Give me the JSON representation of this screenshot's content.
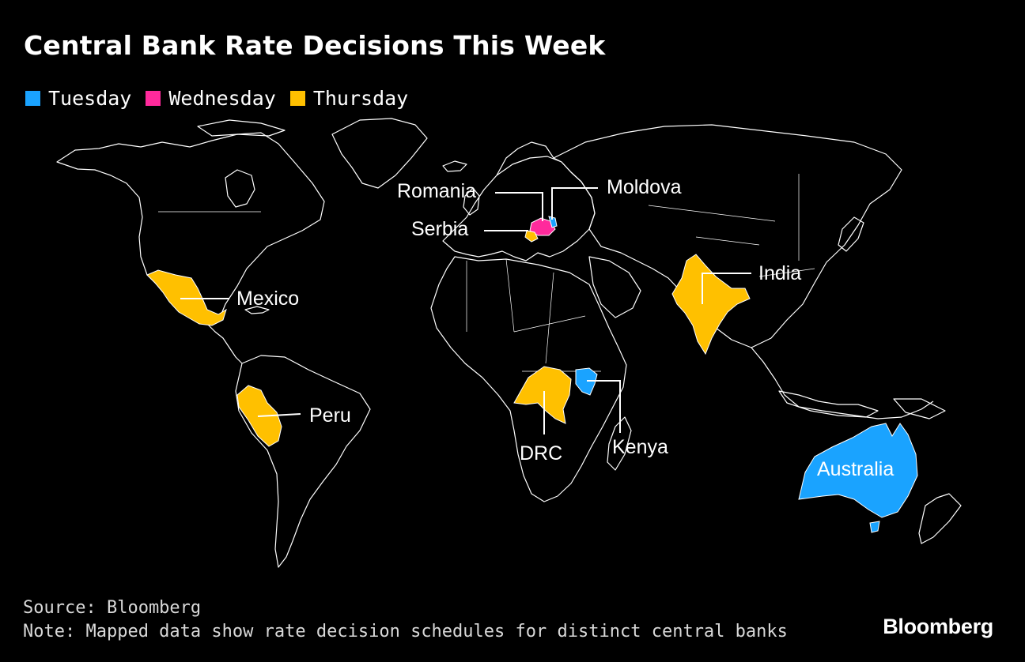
{
  "title": "Central Bank Rate Decisions This Week",
  "legend": [
    {
      "label": "Tuesday",
      "color": "#1aa3ff"
    },
    {
      "label": "Wednesday",
      "color": "#ff2a9c"
    },
    {
      "label": "Thursday",
      "color": "#ffc000"
    }
  ],
  "countries": {
    "romania": {
      "label": "Romania",
      "day": "Wednesday",
      "color": "#ff2a9c"
    },
    "moldova": {
      "label": "Moldova",
      "day": "Tuesday",
      "color": "#1aa3ff"
    },
    "serbia": {
      "label": "Serbia",
      "day": "Thursday",
      "color": "#ffc000"
    },
    "mexico": {
      "label": "Mexico",
      "day": "Thursday",
      "color": "#ffc000"
    },
    "india": {
      "label": "India",
      "day": "Thursday",
      "color": "#ffc000"
    },
    "peru": {
      "label": "Peru",
      "day": "Thursday",
      "color": "#ffc000"
    },
    "drc": {
      "label": "DRC",
      "day": "Thursday",
      "color": "#ffc000"
    },
    "kenya": {
      "label": "Kenya",
      "day": "Tuesday",
      "color": "#1aa3ff"
    },
    "australia": {
      "label": "Australia",
      "day": "Tuesday",
      "color": "#1aa3ff"
    }
  },
  "footer": {
    "source": "Source: Bloomberg",
    "note": "Note: Mapped data show rate decision schedules for distinct central banks"
  },
  "brand": "Bloomberg",
  "colors": {
    "background": "#000000",
    "outline": "#ffffff"
  }
}
